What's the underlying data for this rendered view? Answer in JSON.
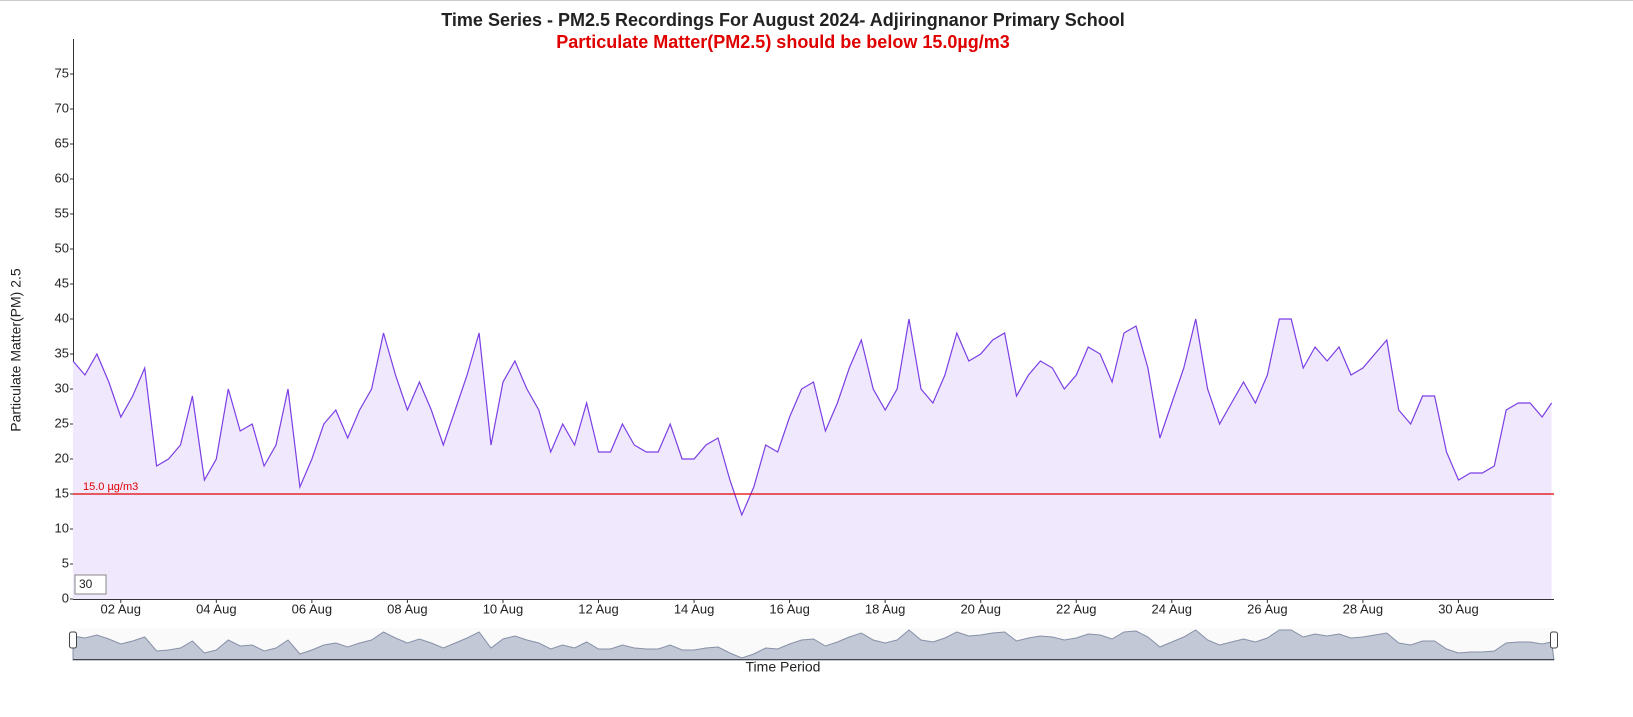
{
  "chart_data": {
    "type": "line",
    "title": "Time Series - PM2.5 Recordings For August 2024- Adjiringnanor Primary School",
    "subtitle": "Particulate Matter(PM2.5) should be below 15.0µg/m3",
    "xlabel": "Time Period",
    "ylabel": "Particulate Matter(PM) 2.5",
    "roll_period": "30",
    "threshold": {
      "value": 15,
      "label": "15.0 µg/m3",
      "color": "#e00000"
    },
    "xlim": [
      1,
      32
    ],
    "ylim": [
      0,
      80
    ],
    "yticks": [
      0,
      5,
      10,
      15,
      20,
      25,
      30,
      35,
      40,
      45,
      50,
      55,
      60,
      65,
      70,
      75
    ],
    "xticks": [
      {
        "value": 2,
        "label": "02 Aug"
      },
      {
        "value": 4,
        "label": "04 Aug"
      },
      {
        "value": 6,
        "label": "06 Aug"
      },
      {
        "value": 8,
        "label": "08 Aug"
      },
      {
        "value": 10,
        "label": "10 Aug"
      },
      {
        "value": 12,
        "label": "12 Aug"
      },
      {
        "value": 14,
        "label": "14 Aug"
      },
      {
        "value": 16,
        "label": "16 Aug"
      },
      {
        "value": 18,
        "label": "18 Aug"
      },
      {
        "value": 20,
        "label": "20 Aug"
      },
      {
        "value": 22,
        "label": "22 Aug"
      },
      {
        "value": 24,
        "label": "24 Aug"
      },
      {
        "value": 26,
        "label": "26 Aug"
      },
      {
        "value": 28,
        "label": "28 Aug"
      },
      {
        "value": 30,
        "label": "30 Aug"
      }
    ],
    "x": [
      1,
      1.25,
      1.5,
      1.75,
      2,
      2.25,
      2.5,
      2.75,
      3,
      3.25,
      3.5,
      3.75,
      4,
      4.25,
      4.5,
      4.75,
      5,
      5.25,
      5.5,
      5.75,
      6,
      6.25,
      6.5,
      6.75,
      7,
      7.25,
      7.5,
      7.75,
      8,
      8.25,
      8.5,
      8.75,
      9,
      9.25,
      9.5,
      9.75,
      10,
      10.25,
      10.5,
      10.75,
      11,
      11.25,
      11.5,
      11.75,
      12,
      12.25,
      12.5,
      12.75,
      13,
      13.25,
      13.5,
      13.75,
      14,
      14.25,
      14.5,
      14.75,
      15,
      15.25,
      15.5,
      15.75,
      16,
      16.25,
      16.5,
      16.75,
      17,
      17.25,
      17.5,
      17.75,
      18,
      18.25,
      18.5,
      18.75,
      19,
      19.25,
      19.5,
      19.75,
      20,
      20.25,
      20.5,
      20.75,
      21,
      21.25,
      21.5,
      21.75,
      22,
      22.25,
      22.5,
      22.75,
      23,
      23.25,
      23.5,
      23.75,
      24,
      24.25,
      24.5,
      24.75,
      25,
      25.25,
      25.5,
      25.75,
      26,
      26.25,
      26.5,
      26.75,
      27,
      27.25,
      27.5,
      27.75,
      28,
      28.25,
      28.5,
      28.75,
      29,
      29.25,
      29.5,
      29.75,
      30,
      30.25,
      30.5,
      30.75,
      31,
      31.25,
      31.5,
      31.75,
      31.95
    ],
    "series": [
      {
        "name": "PM2.5",
        "color": "#7b3fe4",
        "fill": "#f0e8fd",
        "values": [
          34,
          32,
          35,
          31,
          26,
          29,
          33,
          19,
          20,
          22,
          29,
          17,
          20,
          30,
          24,
          25,
          19,
          22,
          30,
          16,
          20,
          25,
          27,
          23,
          27,
          30,
          38,
          32,
          27,
          31,
          27,
          22,
          27,
          32,
          38,
          22,
          31,
          34,
          30,
          27,
          21,
          25,
          22,
          28,
          21,
          21,
          25,
          22,
          21,
          21,
          25,
          20,
          20,
          22,
          23,
          17,
          12,
          16,
          22,
          21,
          26,
          30,
          31,
          24,
          28,
          33,
          37,
          30,
          27,
          30,
          40,
          30,
          28,
          32,
          38,
          34,
          35,
          37,
          38,
          29,
          32,
          34,
          33,
          30,
          32,
          36,
          35,
          31,
          38,
          39,
          33,
          23,
          28,
          33,
          40,
          30,
          25,
          28,
          31,
          28,
          32,
          40,
          40,
          33,
          36,
          34,
          36,
          32,
          33,
          35,
          37,
          27,
          25,
          29,
          29,
          21,
          17,
          18,
          18,
          19,
          27,
          28,
          28,
          26,
          28
        ]
      }
    ]
  }
}
